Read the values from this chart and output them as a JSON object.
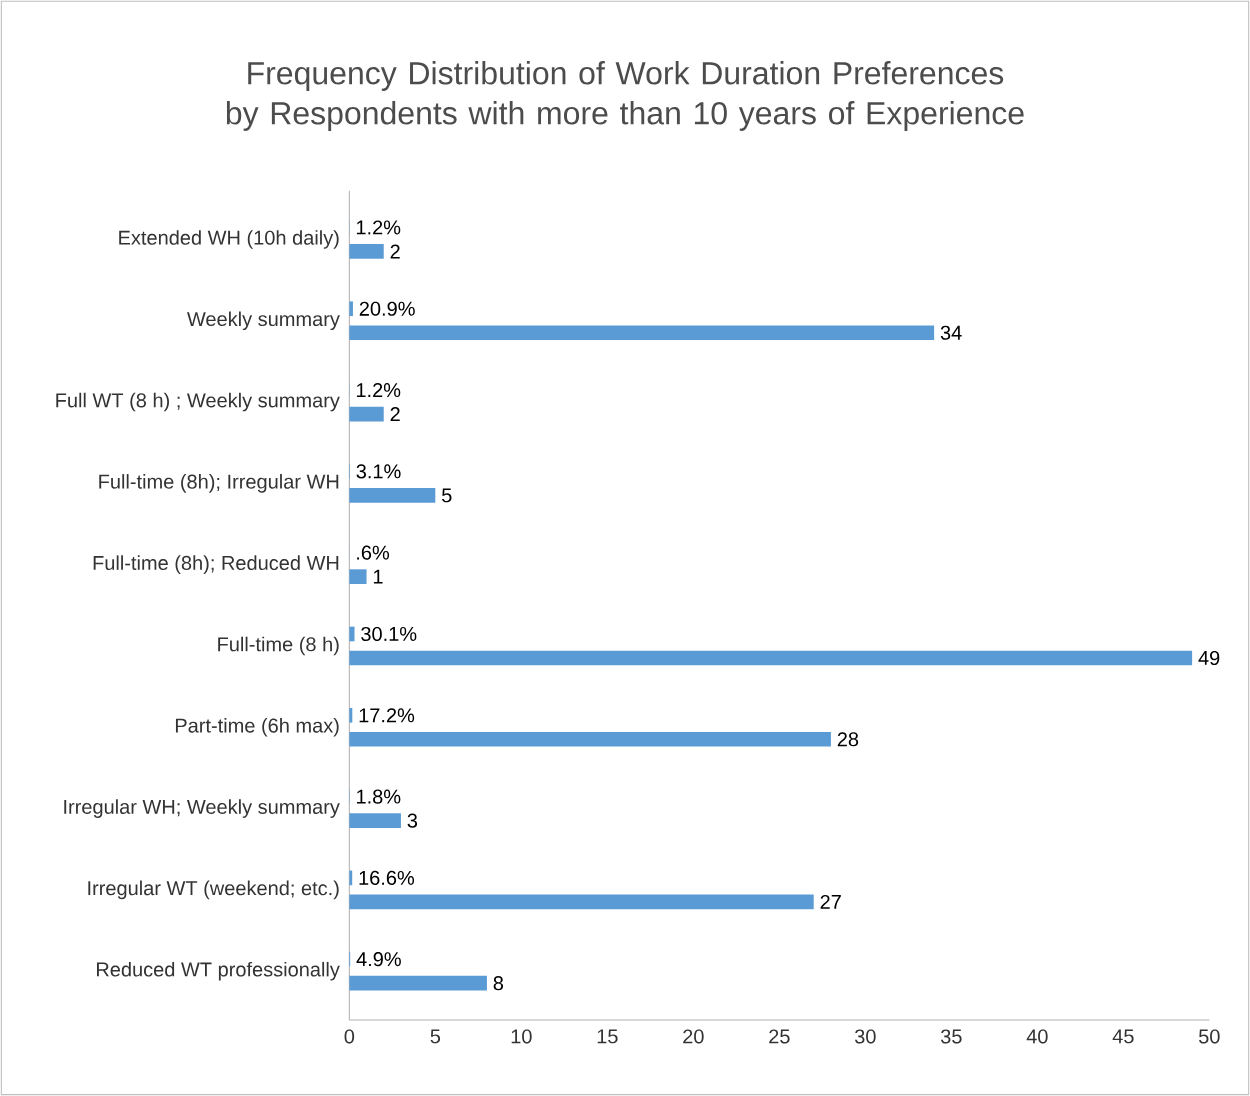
{
  "chart_data": {
    "type": "bar",
    "orientation": "horizontal",
    "title": "Frequency Distribution of Work Duration Preferences by Respondents with more than 10 years of Experience",
    "categories": [
      "Extended WH (10h daily)",
      "Weekly summary",
      "Full WT (8 h) ; Weekly summary",
      "Full-time (8h); Irregular WH",
      "Full-time (8h); Reduced WH",
      "Full-time (8 h)",
      "Part-time (6h max)",
      "Irregular WH; Weekly summary",
      "Irregular WT (weekend; etc.)",
      "Reduced WT professionally"
    ],
    "series": [
      {
        "color": "#5b9bd5",
        "values": [
          0.012,
          0.209,
          0.012,
          0.031,
          0.006,
          0.301,
          0.172,
          0.018,
          0.166,
          0.049
        ],
        "value_labels": [
          "1.2%",
          "20.9%",
          "1.2%",
          "3.1%",
          ".6%",
          "30.1%",
          "17.2%",
          "1.8%",
          "16.6%",
          "4.9%"
        ]
      },
      {
        "color": "#5b9bd5",
        "values": [
          2,
          34,
          2,
          5,
          1,
          49,
          28,
          3,
          27,
          8
        ],
        "value_labels": [
          "2",
          "34",
          "2",
          "5",
          "1",
          "49",
          "28",
          "3",
          "27",
          "8"
        ]
      }
    ],
    "xlim": [
      0,
      50
    ],
    "xticks": [
      0,
      5,
      10,
      15,
      20,
      25,
      30,
      35,
      40,
      45,
      50
    ],
    "grid": false
  }
}
